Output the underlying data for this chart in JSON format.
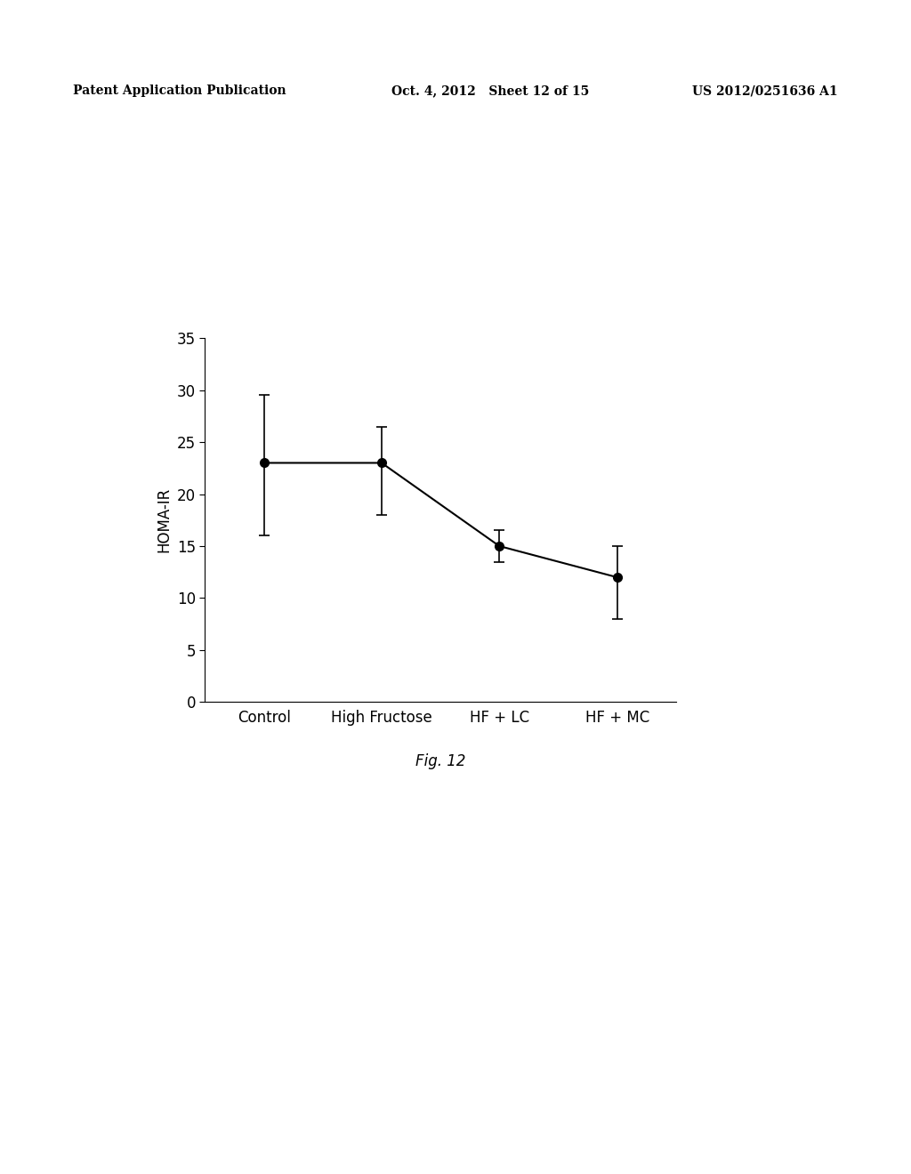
{
  "categories": [
    "Control",
    "High Fructose",
    "HF + LC",
    "HF + MC"
  ],
  "values": [
    23.0,
    23.0,
    15.0,
    12.0
  ],
  "error_upper": [
    6.5,
    3.5,
    1.5,
    3.0
  ],
  "error_lower": [
    7.0,
    5.0,
    1.5,
    4.0
  ],
  "ylabel": "HOMA-IR",
  "ylim": [
    0,
    35
  ],
  "yticks": [
    0,
    5,
    10,
    15,
    20,
    25,
    30,
    35
  ],
  "caption": "Fig. 12",
  "line_color": "#000000",
  "marker_color": "#000000",
  "marker_size": 7,
  "line_width": 1.5,
  "header_left": "Patent Application Publication",
  "header_mid": "Oct. 4, 2012   Sheet 12 of 15",
  "header_right": "US 2012/0251636 A1",
  "background_color": "#ffffff",
  "font_size_ticks": 12,
  "font_size_ylabel": 12,
  "font_size_caption": 12,
  "font_size_header": 10
}
